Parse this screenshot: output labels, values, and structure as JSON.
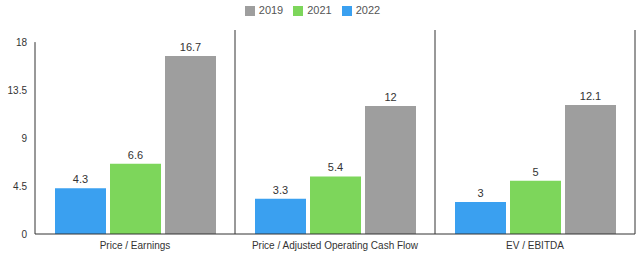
{
  "chart_data": {
    "type": "bar",
    "categories": [
      "Price / Earnings",
      "Price / Adjusted Operating Cash Flow",
      "EV / EBITDA"
    ],
    "series": [
      {
        "name": "2022",
        "color": "#3aa0f0",
        "values": [
          4.3,
          3.3,
          3
        ]
      },
      {
        "name": "2021",
        "color": "#7dd65b",
        "values": [
          6.6,
          5.4,
          5
        ]
      },
      {
        "name": "2019",
        "color": "#9e9e9e",
        "values": [
          16.7,
          12,
          12.1
        ]
      }
    ],
    "ylim": [
      0,
      18
    ],
    "yticks": [
      0,
      4.5,
      9,
      13.5,
      18
    ],
    "legend": "top",
    "data_labels": true
  }
}
